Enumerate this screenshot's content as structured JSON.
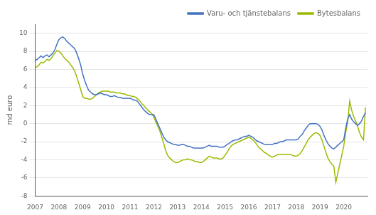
{
  "chart_data": {
    "type": "line",
    "ylabel": "md euro",
    "x": [
      2007,
      2007.0833,
      2007.1667,
      2007.25,
      2007.3333,
      2007.4167,
      2007.5,
      2007.5833,
      2007.6667,
      2007.75,
      2007.8333,
      2007.9167,
      2008,
      2008.0833,
      2008.1667,
      2008.25,
      2008.3333,
      2008.4167,
      2008.5,
      2008.5833,
      2008.6667,
      2008.75,
      2008.8333,
      2008.9167,
      2009,
      2009.0833,
      2009.1667,
      2009.25,
      2009.3333,
      2009.4167,
      2009.5,
      2009.5833,
      2009.6667,
      2009.75,
      2009.8333,
      2009.9167,
      2010,
      2010.0833,
      2010.1667,
      2010.25,
      2010.3333,
      2010.4167,
      2010.5,
      2010.5833,
      2010.6667,
      2010.75,
      2010.8333,
      2010.9167,
      2011,
      2011.0833,
      2011.1667,
      2011.25,
      2011.3333,
      2011.4167,
      2011.5,
      2011.5833,
      2011.6667,
      2011.75,
      2011.8333,
      2011.9167,
      2012,
      2012.0833,
      2012.1667,
      2012.25,
      2012.3333,
      2012.4167,
      2012.5,
      2012.5833,
      2012.6667,
      2012.75,
      2012.8333,
      2012.9167,
      2013,
      2013.0833,
      2013.1667,
      2013.25,
      2013.3333,
      2013.4167,
      2013.5,
      2013.5833,
      2013.6667,
      2013.75,
      2013.8333,
      2013.9167,
      2014,
      2014.0833,
      2014.1667,
      2014.25,
      2014.3333,
      2014.4167,
      2014.5,
      2014.5833,
      2014.6667,
      2014.75,
      2014.8333,
      2014.9167,
      2015,
      2015.0833,
      2015.1667,
      2015.25,
      2015.3333,
      2015.4167,
      2015.5,
      2015.5833,
      2015.6667,
      2015.75,
      2015.8333,
      2015.9167,
      2016,
      2016.0833,
      2016.1667,
      2016.25,
      2016.3333,
      2016.4167,
      2016.5,
      2016.5833,
      2016.6667,
      2016.75,
      2016.8333,
      2016.9167,
      2017,
      2017.0833,
      2017.1667,
      2017.25,
      2017.3333,
      2017.4167,
      2017.5,
      2017.5833,
      2017.6667,
      2017.75,
      2017.8333,
      2017.9167,
      2018,
      2018.0833,
      2018.1667,
      2018.25,
      2018.3333,
      2018.4167,
      2018.5,
      2018.5833,
      2018.6667,
      2018.75,
      2018.8333,
      2018.9167,
      2019,
      2019.0833,
      2019.1667,
      2019.25,
      2019.3333,
      2019.4167,
      2019.5,
      2019.5833,
      2019.6667,
      2019.75,
      2019.8333,
      2019.9167,
      2020,
      2020.0833,
      2020.1667,
      2020.25,
      2020.3333,
      2020.4167,
      2020.5,
      2020.5833,
      2020.6667,
      2020.75,
      2020.8333,
      2020.9167
    ],
    "series": [
      {
        "name": "Varu- och tjänstebalans",
        "color": "#4472c4",
        "values": [
          7.0,
          7.1,
          7.3,
          7.5,
          7.3,
          7.5,
          7.6,
          7.4,
          7.6,
          7.8,
          8.2,
          8.8,
          9.3,
          9.5,
          9.6,
          9.4,
          9.1,
          8.9,
          8.7,
          8.5,
          8.3,
          7.8,
          7.2,
          6.5,
          5.5,
          4.8,
          4.2,
          3.7,
          3.5,
          3.3,
          3.2,
          3.2,
          3.3,
          3.4,
          3.3,
          3.2,
          3.2,
          3.1,
          3.0,
          3.0,
          3.1,
          3.0,
          2.9,
          2.9,
          2.8,
          2.8,
          2.8,
          2.8,
          2.8,
          2.7,
          2.6,
          2.6,
          2.4,
          2.1,
          1.8,
          1.5,
          1.3,
          1.1,
          1.0,
          1.0,
          1.0,
          0.5,
          0.0,
          -0.5,
          -1.0,
          -1.5,
          -1.8,
          -2.0,
          -2.1,
          -2.2,
          -2.3,
          -2.3,
          -2.4,
          -2.4,
          -2.3,
          -2.3,
          -2.4,
          -2.5,
          -2.5,
          -2.6,
          -2.7,
          -2.7,
          -2.7,
          -2.7,
          -2.7,
          -2.7,
          -2.6,
          -2.5,
          -2.4,
          -2.5,
          -2.5,
          -2.5,
          -2.5,
          -2.6,
          -2.6,
          -2.6,
          -2.5,
          -2.3,
          -2.2,
          -2.0,
          -1.9,
          -1.8,
          -1.8,
          -1.7,
          -1.6,
          -1.5,
          -1.4,
          -1.4,
          -1.3,
          -1.4,
          -1.5,
          -1.7,
          -1.9,
          -2.0,
          -2.1,
          -2.2,
          -2.3,
          -2.3,
          -2.3,
          -2.3,
          -2.3,
          -2.2,
          -2.2,
          -2.1,
          -2.0,
          -2.0,
          -1.9,
          -1.8,
          -1.8,
          -1.8,
          -1.8,
          -1.8,
          -1.8,
          -1.7,
          -1.4,
          -1.2,
          -0.8,
          -0.5,
          -0.2,
          0.0,
          0.0,
          0.0,
          0.0,
          -0.1,
          -0.3,
          -0.7,
          -1.3,
          -1.8,
          -2.2,
          -2.5,
          -2.7,
          -2.8,
          -2.6,
          -2.4,
          -2.2,
          -2.0,
          -1.8,
          -0.5,
          0.5,
          1.0,
          0.5,
          0.2,
          0.0,
          -0.2,
          0.0,
          0.3,
          0.8,
          1.2
        ]
      },
      {
        "name": "Bytesbalans",
        "color": "#9bbb00",
        "values": [
          6.2,
          6.3,
          6.5,
          6.8,
          6.7,
          6.9,
          7.1,
          7.0,
          7.2,
          7.5,
          7.8,
          8.1,
          8.0,
          7.8,
          7.5,
          7.2,
          7.0,
          6.8,
          6.5,
          6.2,
          5.8,
          5.2,
          4.5,
          3.8,
          3.0,
          2.8,
          2.8,
          2.7,
          2.7,
          2.8,
          3.0,
          3.2,
          3.4,
          3.5,
          3.6,
          3.6,
          3.6,
          3.6,
          3.5,
          3.5,
          3.5,
          3.4,
          3.4,
          3.4,
          3.3,
          3.3,
          3.2,
          3.1,
          3.1,
          3.0,
          3.0,
          2.9,
          2.7,
          2.5,
          2.2,
          2.0,
          1.7,
          1.5,
          1.3,
          1.1,
          0.7,
          0.2,
          -0.3,
          -0.8,
          -1.5,
          -2.2,
          -3.0,
          -3.5,
          -3.8,
          -4.0,
          -4.2,
          -4.3,
          -4.3,
          -4.2,
          -4.1,
          -4.0,
          -4.0,
          -3.9,
          -4.0,
          -4.0,
          -4.1,
          -4.2,
          -4.2,
          -4.3,
          -4.3,
          -4.2,
          -4.0,
          -3.8,
          -3.6,
          -3.7,
          -3.8,
          -3.8,
          -3.8,
          -3.9,
          -3.9,
          -3.8,
          -3.5,
          -3.2,
          -2.8,
          -2.5,
          -2.3,
          -2.2,
          -2.1,
          -2.0,
          -1.9,
          -1.8,
          -1.7,
          -1.6,
          -1.5,
          -1.6,
          -1.8,
          -2.0,
          -2.3,
          -2.6,
          -2.8,
          -3.0,
          -3.2,
          -3.3,
          -3.5,
          -3.6,
          -3.7,
          -3.6,
          -3.5,
          -3.4,
          -3.4,
          -3.4,
          -3.4,
          -3.4,
          -3.4,
          -3.4,
          -3.5,
          -3.6,
          -3.6,
          -3.5,
          -3.3,
          -3.0,
          -2.6,
          -2.2,
          -1.8,
          -1.5,
          -1.3,
          -1.1,
          -1.0,
          -1.1,
          -1.3,
          -1.8,
          -2.5,
          -3.2,
          -3.8,
          -4.2,
          -4.5,
          -4.7,
          -6.5,
          -5.5,
          -4.5,
          -3.5,
          -2.5,
          -1.0,
          0.2,
          2.5,
          1.5,
          0.8,
          0.3,
          -0.3,
          -1.0,
          -1.5,
          -1.8,
          1.8
        ]
      }
    ],
    "xlim": [
      2007,
      2021
    ],
    "xticks": [
      2007,
      2008,
      2009,
      2010,
      2011,
      2012,
      2013,
      2014,
      2015,
      2016,
      2017,
      2018,
      2019,
      2020
    ],
    "ylim": [
      -8,
      11
    ],
    "yticks": [
      -8,
      -6,
      -4,
      -2,
      0,
      2,
      4,
      6,
      8,
      10
    ],
    "grid": "y",
    "legend": "upper right"
  }
}
